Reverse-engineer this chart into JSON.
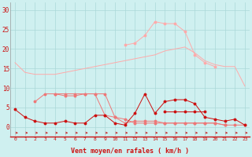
{
  "x": [
    0,
    1,
    2,
    3,
    4,
    5,
    6,
    7,
    8,
    9,
    10,
    11,
    12,
    13,
    14,
    15,
    16,
    17,
    18,
    19,
    20,
    21,
    22,
    23
  ],
  "line1": [
    16.5,
    14.0,
    13.5,
    13.5,
    13.5,
    14.0,
    14.5,
    15.0,
    15.5,
    16.0,
    16.5,
    17.0,
    17.5,
    18.0,
    18.5,
    19.5,
    20.0,
    20.5,
    19.0,
    17.0,
    16.0,
    15.5,
    15.5,
    10.5
  ],
  "line2": [
    null,
    null,
    null,
    null,
    null,
    null,
    null,
    null,
    null,
    null,
    null,
    21.0,
    21.5,
    23.5,
    27.0,
    26.5,
    26.5,
    24.5,
    18.5,
    16.5,
    15.5,
    null,
    null,
    null
  ],
  "line3": [
    4.5,
    2.5,
    1.5,
    1.0,
    1.0,
    1.5,
    1.0,
    1.0,
    3.0,
    3.0,
    1.0,
    0.5,
    3.5,
    8.5,
    3.5,
    6.5,
    7.0,
    7.0,
    6.0,
    2.5,
    2.0,
    1.5,
    2.0,
    0.5
  ],
  "line4": [
    null,
    null,
    null,
    null,
    null,
    null,
    null,
    null,
    null,
    null,
    null,
    null,
    null,
    null,
    null,
    4.0,
    4.0,
    4.0,
    4.0,
    4.0,
    null,
    null,
    null,
    null
  ],
  "line5": [
    null,
    null,
    null,
    null,
    8.5,
    8.5,
    8.5,
    8.5,
    8.5,
    3.0,
    2.5,
    1.0,
    1.5,
    1.5,
    1.5,
    1.0,
    1.0,
    1.0,
    1.0,
    1.0,
    1.0,
    0.5,
    0.5,
    0.5
  ],
  "line6": [
    null,
    null,
    6.5,
    8.5,
    8.5,
    8.0,
    8.0,
    8.5,
    8.5,
    8.5,
    2.5,
    2.0,
    1.0,
    1.0,
    1.0,
    1.0,
    1.0,
    1.0,
    1.0,
    1.0,
    1.0,
    0.5,
    null,
    null
  ],
  "background_color": "#cff0f0",
  "grid_color": "#aad8d8",
  "line_color_light": "#ffaaaa",
  "line_color_mid": "#ee7777",
  "line_color_dark": "#cc1111",
  "xlabel": "Vent moyen/en rafales ( km/h )",
  "ylim": [
    -2.5,
    32
  ],
  "xlim": [
    -0.5,
    23.5
  ],
  "yticks": [
    0,
    5,
    10,
    15,
    20,
    25,
    30
  ]
}
